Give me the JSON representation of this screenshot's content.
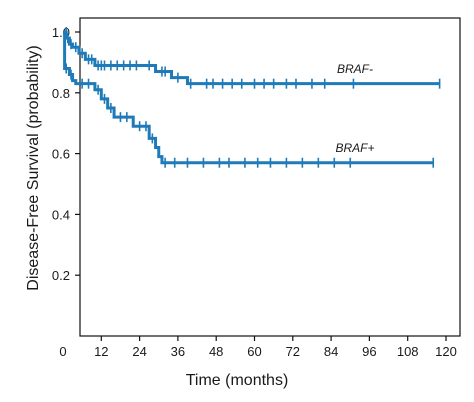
{
  "chart_data": {
    "type": "line",
    "xlabel": "Time (months)",
    "ylabel": "Disease-Free Survival (probability)",
    "xlim": [
      0,
      120
    ],
    "ylim": [
      0,
      1.0
    ],
    "x_ticks": [
      "0",
      "12",
      "24",
      "36",
      "48",
      "60",
      "72",
      "84",
      "96",
      "108",
      "120"
    ],
    "y_ticks": [
      "0.2",
      "0.4",
      "0.6",
      "0.8",
      "1.0"
    ],
    "grid": false,
    "colors": {
      "series": "#1f7ab8",
      "axis": "#111111"
    },
    "series": [
      {
        "name": "BRAF-",
        "steps": [
          [
            0,
            1.0
          ],
          [
            1,
            0.98
          ],
          [
            2,
            0.96
          ],
          [
            3,
            0.95
          ],
          [
            5,
            0.93
          ],
          [
            7,
            0.91
          ],
          [
            10,
            0.89
          ],
          [
            14,
            0.89
          ],
          [
            20,
            0.89
          ],
          [
            28,
            0.89
          ],
          [
            29,
            0.87
          ],
          [
            33,
            0.87
          ],
          [
            34,
            0.85
          ],
          [
            38,
            0.85
          ],
          [
            39,
            0.83
          ],
          [
            118,
            0.83
          ]
        ],
        "censors": [
          [
            1,
            1.0
          ],
          [
            1.5,
            0.98
          ],
          [
            2.5,
            0.96
          ],
          [
            4,
            0.95
          ],
          [
            6,
            0.93
          ],
          [
            8,
            0.91
          ],
          [
            9,
            0.91
          ],
          [
            11,
            0.89
          ],
          [
            12,
            0.89
          ],
          [
            13,
            0.89
          ],
          [
            15,
            0.89
          ],
          [
            17,
            0.89
          ],
          [
            19,
            0.89
          ],
          [
            21,
            0.89
          ],
          [
            23,
            0.89
          ],
          [
            27,
            0.89
          ],
          [
            31,
            0.87
          ],
          [
            32,
            0.87
          ],
          [
            36,
            0.85
          ],
          [
            40,
            0.83
          ],
          [
            45,
            0.83
          ],
          [
            47,
            0.83
          ],
          [
            50,
            0.83
          ],
          [
            53,
            0.83
          ],
          [
            56,
            0.83
          ],
          [
            60,
            0.83
          ],
          [
            63,
            0.83
          ],
          [
            66,
            0.83
          ],
          [
            70,
            0.83
          ],
          [
            73,
            0.83
          ],
          [
            78,
            0.83
          ],
          [
            82,
            0.83
          ],
          [
            91,
            0.83
          ],
          [
            118,
            0.83
          ]
        ]
      },
      {
        "name": "BRAF+",
        "steps": [
          [
            0,
            1.0
          ],
          [
            0.5,
            0.88
          ],
          [
            2,
            0.86
          ],
          [
            3,
            0.84
          ],
          [
            4,
            0.83
          ],
          [
            10,
            0.81
          ],
          [
            12,
            0.78
          ],
          [
            14,
            0.75
          ],
          [
            16,
            0.72
          ],
          [
            22,
            0.69
          ],
          [
            27,
            0.65
          ],
          [
            29,
            0.62
          ],
          [
            30,
            0.59
          ],
          [
            31,
            0.57
          ],
          [
            116,
            0.57
          ]
        ],
        "censors": [
          [
            1,
            0.88
          ],
          [
            2.5,
            0.86
          ],
          [
            6,
            0.83
          ],
          [
            8,
            0.83
          ],
          [
            11,
            0.81
          ],
          [
            13,
            0.78
          ],
          [
            15,
            0.75
          ],
          [
            18,
            0.72
          ],
          [
            20,
            0.72
          ],
          [
            24,
            0.69
          ],
          [
            26,
            0.69
          ],
          [
            28,
            0.65
          ],
          [
            32,
            0.57
          ],
          [
            35,
            0.57
          ],
          [
            39,
            0.57
          ],
          [
            44,
            0.57
          ],
          [
            49,
            0.57
          ],
          [
            52,
            0.57
          ],
          [
            57,
            0.57
          ],
          [
            61,
            0.57
          ],
          [
            65,
            0.57
          ],
          [
            70,
            0.57
          ],
          [
            75,
            0.57
          ],
          [
            80,
            0.57
          ],
          [
            85,
            0.57
          ],
          [
            90,
            0.57
          ],
          [
            116,
            0.57
          ]
        ]
      }
    ]
  }
}
